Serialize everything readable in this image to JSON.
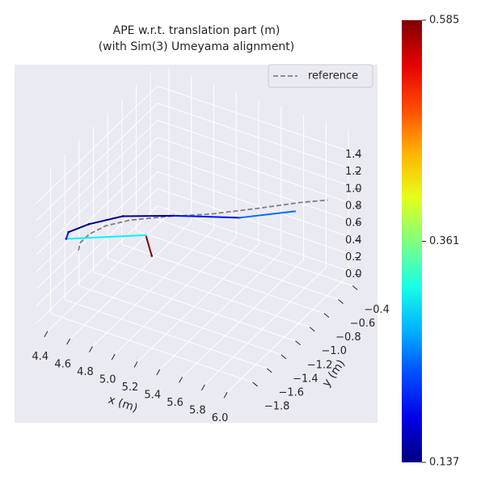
{
  "chart_data": {
    "type": "line3d",
    "title": "APE w.r.t. translation part (m)",
    "subtitle": "(with Sim(3) Umeyama alignment)",
    "xlabel": "x (m)",
    "ylabel": "y (m)",
    "xlim": [
      4.3,
      6.1
    ],
    "ylim": [
      -2.0,
      -0.3
    ],
    "zlim": [
      -0.05,
      1.65
    ],
    "xticks": [
      4.4,
      4.6,
      4.8,
      {
        "value": 5.0,
        "label": "5.0"
      },
      5.2,
      5.4,
      5.6,
      5.8,
      {
        "value": 6.0,
        "label": "6.0"
      }
    ],
    "yticks": [
      {
        "value": -1.8,
        "label": "−1.8"
      },
      {
        "value": -1.6,
        "label": "−1.6"
      },
      {
        "value": -1.4,
        "label": "−1.4"
      },
      {
        "value": -1.2,
        "label": "−1.2"
      },
      {
        "value": -1.0,
        "label": "−1.0"
      },
      {
        "value": -0.8,
        "label": "−0.8"
      },
      {
        "value": -0.6,
        "label": "−0.6"
      },
      {
        "value": -0.4,
        "label": "−0.4"
      }
    ],
    "zticks": [
      {
        "value": 0,
        "label": "0.0"
      },
      0.2,
      0.4,
      0.6,
      0.8,
      {
        "value": 1,
        "label": "1.0"
      },
      1.2,
      1.4
    ],
    "grid": true,
    "legend": "upper right",
    "colormap": "jet",
    "series": [
      {
        "name": "reference",
        "color": "#808080",
        "dashed": true,
        "x": [
          4.49,
          4.45,
          4.45,
          4.5,
          4.62,
          4.86,
          5.11,
          5.39,
          5.62,
          5.79
        ],
        "y": [
          -1.71,
          -1.62,
          -1.5,
          -1.35,
          -1.2,
          -1.01,
          -0.84,
          -0.6,
          -0.39,
          -0.26
        ],
        "z": [
          0.7,
          0.7,
          0.7,
          0.7,
          0.7,
          0.7,
          0.7,
          0.7,
          0.7,
          0.7
        ]
      },
      {
        "x": [
          5.01,
          4.83,
          4.33,
          4.3,
          4.38,
          4.55,
          4.88,
          5.33,
          5.65
        ],
        "y": [
          -1.5,
          -1.3,
          -1.63,
          -1.55,
          -1.39,
          -1.18,
          -0.99,
          -0.77,
          -0.5
        ],
        "z": [
          0.7,
          0.7,
          0.7,
          0.7,
          0.7,
          0.7,
          0.7,
          0.7,
          0.7
        ],
        "values": [
          0.585,
          0.3,
          0.2,
          0.14,
          0.14,
          0.15,
          0.2,
          0.24,
          0.26
        ]
      }
    ],
    "colorbar": {
      "lim": [
        0.137,
        0.585
      ],
      "ticks": [
        0.137,
        0.361,
        0.585
      ]
    }
  }
}
